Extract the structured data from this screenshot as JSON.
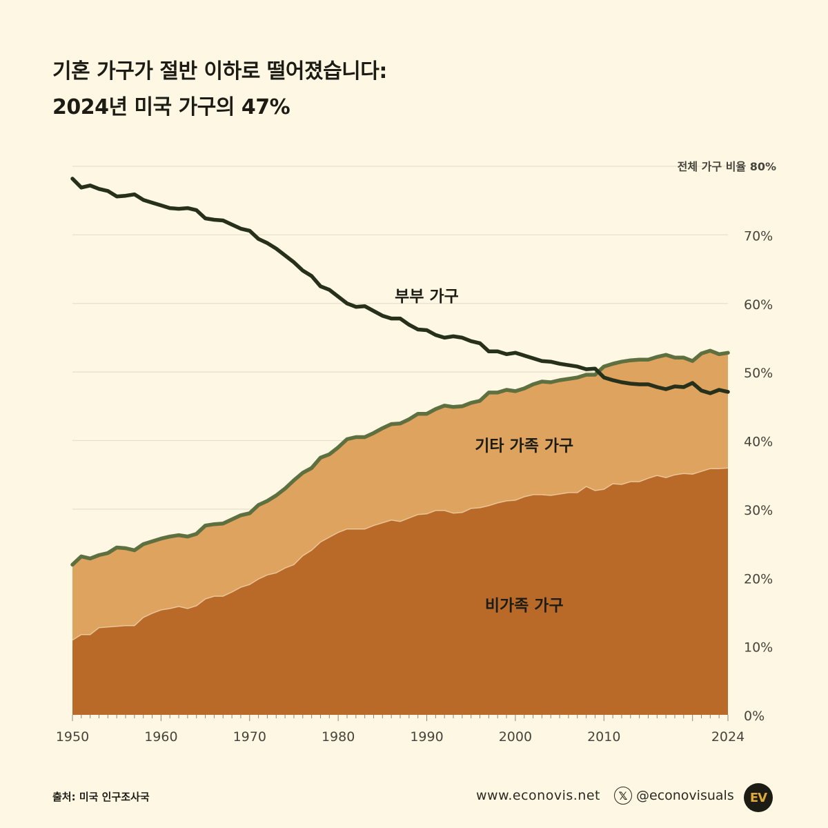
{
  "title": {
    "line1": "기혼 가구가 절반 이하로 떨어졌습니다:",
    "line2": "2024년 미국 가구의 47%"
  },
  "chart_data": {
    "type": "area",
    "y_axis_top_label": "전체 가구 비율 80%",
    "y_ticks": [
      "0%",
      "10%",
      "20%",
      "30%",
      "40%",
      "50%",
      "60%",
      "70%"
    ],
    "x_ticks": [
      1950,
      1960,
      1970,
      1980,
      1990,
      2000,
      2010,
      2024
    ],
    "xlim": [
      1950,
      2024
    ],
    "ylim": [
      0,
      80
    ],
    "grid": true,
    "colors": {
      "nonfamily": "#b96a28",
      "other_family": "#dea35f",
      "boundary_line": "#5e7040",
      "married_line": "#27301a",
      "grid": "#e7e1cb",
      "axis_text": "#45453c"
    },
    "years": [
      1950,
      1951,
      1952,
      1953,
      1954,
      1955,
      1956,
      1957,
      1958,
      1959,
      1960,
      1961,
      1962,
      1963,
      1964,
      1965,
      1966,
      1967,
      1968,
      1969,
      1970,
      1971,
      1972,
      1973,
      1974,
      1975,
      1976,
      1977,
      1978,
      1979,
      1980,
      1981,
      1982,
      1983,
      1984,
      1985,
      1986,
      1987,
      1988,
      1989,
      1990,
      1991,
      1992,
      1993,
      1994,
      1995,
      1996,
      1997,
      1998,
      1999,
      2000,
      2001,
      2002,
      2003,
      2004,
      2005,
      2006,
      2007,
      2008,
      2009,
      2010,
      2011,
      2012,
      2013,
      2014,
      2015,
      2016,
      2017,
      2018,
      2019,
      2020,
      2021,
      2022,
      2023,
      2024
    ],
    "series": [
      {
        "name": "비가족 가구",
        "label": "비가족 가구",
        "values": [
          10.9,
          11.7,
          11.7,
          12.7,
          12.8,
          12.9,
          13.0,
          13.0,
          14.2,
          14.8,
          15.3,
          15.5,
          15.8,
          15.5,
          15.9,
          16.9,
          17.3,
          17.3,
          17.9,
          18.6,
          19.0,
          19.8,
          20.4,
          20.7,
          21.4,
          21.9,
          23.2,
          24.0,
          25.2,
          25.9,
          26.6,
          27.1,
          27.1,
          27.1,
          27.6,
          28.0,
          28.4,
          28.2,
          28.7,
          29.2,
          29.3,
          29.8,
          29.8,
          29.4,
          29.5,
          30.1,
          30.2,
          30.5,
          30.9,
          31.2,
          31.3,
          31.8,
          32.1,
          32.1,
          32.0,
          32.2,
          32.4,
          32.4,
          33.3,
          32.7,
          32.9,
          33.7,
          33.6,
          34.0,
          34.0,
          34.5,
          34.9,
          34.6,
          35.0,
          35.2,
          35.1,
          35.5,
          35.9,
          35.9,
          36.0
        ]
      },
      {
        "name": "기타 가족 가구",
        "label": "기타 가족 가구",
        "values": [
          11.0,
          11.4,
          11.1,
          10.6,
          10.8,
          11.5,
          11.3,
          11.0,
          10.7,
          10.5,
          10.4,
          10.5,
          10.4,
          10.5,
          10.5,
          10.7,
          10.5,
          10.6,
          10.6,
          10.5,
          10.4,
          10.8,
          10.8,
          11.3,
          11.6,
          12.3,
          12.1,
          12.0,
          12.3,
          12.1,
          12.4,
          13.1,
          13.4,
          13.4,
          13.5,
          13.8,
          14.0,
          14.3,
          14.4,
          14.7,
          14.6,
          14.8,
          15.3,
          15.5,
          15.5,
          15.4,
          15.6,
          16.5,
          16.1,
          16.2,
          15.9,
          15.8,
          16.1,
          16.5,
          16.5,
          16.6,
          16.6,
          16.8,
          16.3,
          16.9,
          17.9,
          17.5,
          17.9,
          17.7,
          17.8,
          17.3,
          17.3,
          17.9,
          17.1,
          16.9,
          16.5,
          17.2,
          17.2,
          16.7,
          16.8
        ]
      },
      {
        "name": "부부 가구",
        "label": "부부 가구",
        "values": [
          78.2,
          76.9,
          77.2,
          76.7,
          76.4,
          75.6,
          75.7,
          75.9,
          75.1,
          74.7,
          74.3,
          73.9,
          73.8,
          73.9,
          73.6,
          72.4,
          72.2,
          72.1,
          71.5,
          70.9,
          70.6,
          69.4,
          68.8,
          68.0,
          67.0,
          66.0,
          64.8,
          64.0,
          62.5,
          62.0,
          61.0,
          60.0,
          59.5,
          59.6,
          58.9,
          58.2,
          57.8,
          57.8,
          56.9,
          56.2,
          56.1,
          55.4,
          55.0,
          55.2,
          55.0,
          54.5,
          54.2,
          53.0,
          53.0,
          52.6,
          52.8,
          52.4,
          52.0,
          51.6,
          51.5,
          51.2,
          51.0,
          50.8,
          50.4,
          50.5,
          49.2,
          48.8,
          48.5,
          48.3,
          48.2,
          48.2,
          47.8,
          47.5,
          47.9,
          47.8,
          48.4,
          47.3,
          46.9,
          47.4,
          47.1
        ]
      }
    ]
  },
  "footer": {
    "source": "출처: 미국 인구조사국",
    "website": "www.econovis.net",
    "social": "@econovisuals",
    "x_icon": "x-logo-icon",
    "logo_text": "EV"
  }
}
